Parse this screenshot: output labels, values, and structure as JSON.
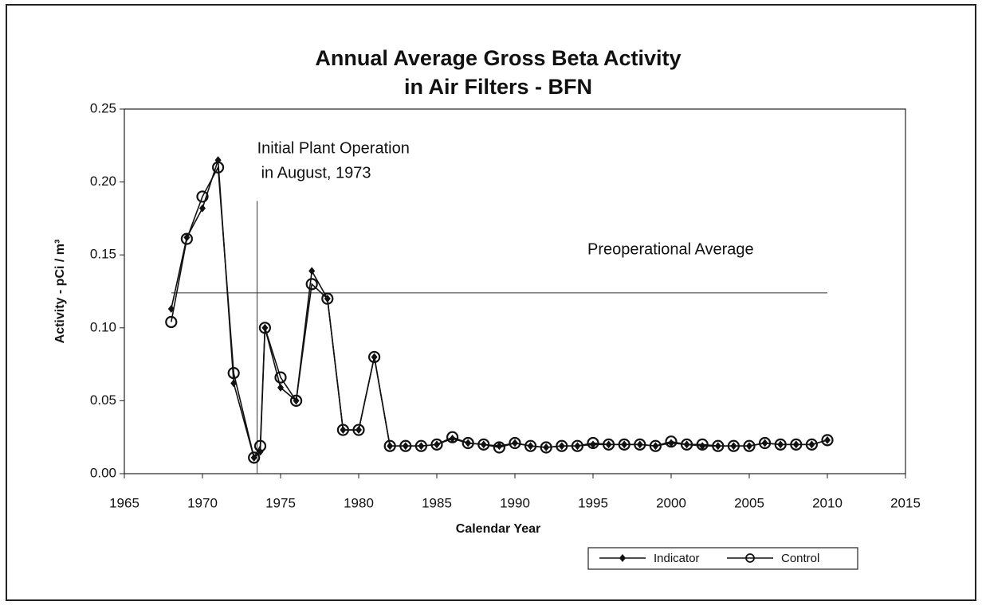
{
  "chart_data": {
    "type": "line",
    "title": [
      "Annual Average Gross Beta Activity",
      "in Air Filters - BFN"
    ],
    "xlabel": "Calendar Year",
    "ylabel": "Activity - pCi / m³",
    "x": [
      1968,
      1969,
      1970,
      1971,
      1972,
      1973.3,
      1973.7,
      1974,
      1975,
      1976,
      1977,
      1978,
      1979,
      1980,
      1981,
      1982,
      1983,
      1984,
      1985,
      1986,
      1987,
      1988,
      1989,
      1990,
      1991,
      1992,
      1993,
      1994,
      1995,
      1996,
      1997,
      1998,
      1999,
      2000,
      2001,
      2002,
      2003,
      2004,
      2005,
      2006,
      2007,
      2008,
      2009,
      2010
    ],
    "series": [
      {
        "name": "Indicator",
        "color": "#111111",
        "marker": "diamond",
        "values": [
          0.113,
          0.162,
          0.182,
          0.215,
          0.062,
          0.011,
          0.015,
          0.1,
          0.059,
          0.05,
          0.139,
          0.12,
          0.03,
          0.03,
          0.08,
          0.019,
          0.019,
          0.019,
          0.02,
          0.024,
          0.021,
          0.02,
          0.019,
          0.021,
          0.019,
          0.018,
          0.019,
          0.019,
          0.02,
          0.02,
          0.02,
          0.02,
          0.019,
          0.021,
          0.02,
          0.019,
          0.019,
          0.019,
          0.019,
          0.021,
          0.02,
          0.02,
          0.02,
          0.023
        ]
      },
      {
        "name": "Control",
        "color": "#111111",
        "marker": "circle",
        "values": [
          0.104,
          0.161,
          0.19,
          0.21,
          0.069,
          0.011,
          0.019,
          0.1,
          0.066,
          0.05,
          0.13,
          0.12,
          0.03,
          0.03,
          0.08,
          0.019,
          0.019,
          0.019,
          0.02,
          0.025,
          0.021,
          0.02,
          0.018,
          0.021,
          0.019,
          0.018,
          0.019,
          0.019,
          0.021,
          0.02,
          0.02,
          0.02,
          0.019,
          0.022,
          0.02,
          0.02,
          0.019,
          0.019,
          0.019,
          0.021,
          0.02,
          0.02,
          0.02,
          0.023
        ]
      }
    ],
    "xlim": [
      1965,
      2015
    ],
    "xticks": [
      1965,
      1970,
      1975,
      1980,
      1985,
      1990,
      1995,
      2000,
      2005,
      2010,
      2015
    ],
    "ylim": [
      0,
      0.25
    ],
    "yticks": [
      {
        "value": 0,
        "label": "0.00"
      },
      {
        "value": 0.05,
        "label": "0.05"
      },
      {
        "value": 0.1,
        "label": "0.10"
      },
      {
        "value": 0.15,
        "label": "0.15"
      },
      {
        "value": 0.2,
        "label": "0.20"
      },
      {
        "value": 0.25,
        "label": "0.25"
      }
    ],
    "reference_line": {
      "label": "Preoperational Average",
      "value": 0.124,
      "x": [
        1968,
        2010
      ]
    },
    "event_line": {
      "label": [
        "Initial Plant Operation",
        "in August, 1973"
      ],
      "x": 1973.5,
      "y_end": 0.187
    },
    "legend": "bottom-right"
  }
}
